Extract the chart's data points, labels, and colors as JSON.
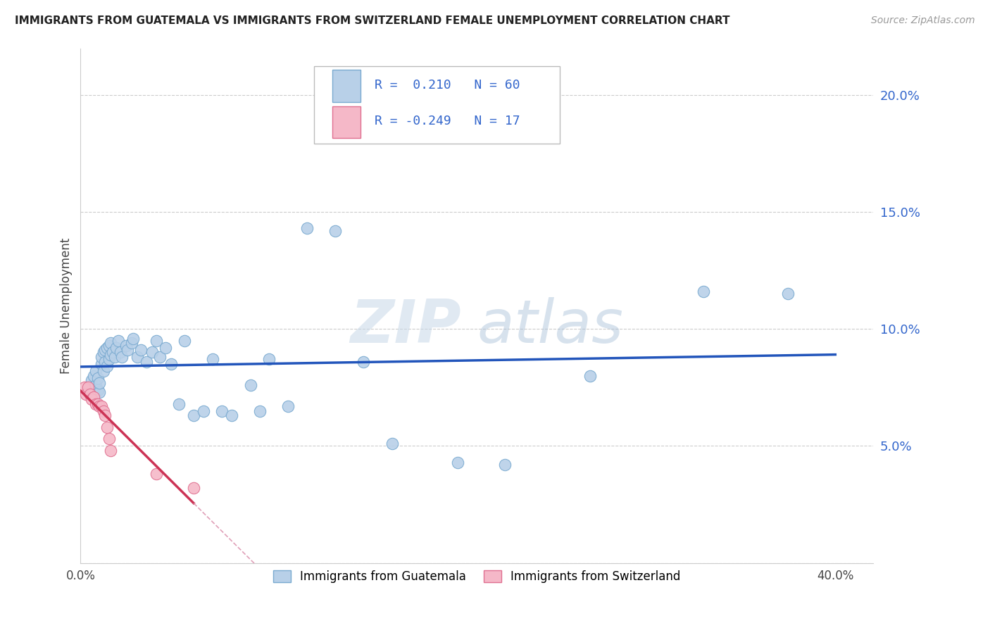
{
  "title": "IMMIGRANTS FROM GUATEMALA VS IMMIGRANTS FROM SWITZERLAND FEMALE UNEMPLOYMENT CORRELATION CHART",
  "source": "Source: ZipAtlas.com",
  "ylabel": "Female Unemployment",
  "ytick_vals": [
    0.0,
    0.05,
    0.1,
    0.15,
    0.2
  ],
  "ytick_labels": [
    "",
    "5.0%",
    "10.0%",
    "15.0%",
    "20.0%"
  ],
  "xtick_vals": [
    0.0,
    0.4
  ],
  "xtick_labels": [
    "0.0%",
    "40.0%"
  ],
  "xlim": [
    0.0,
    0.42
  ],
  "ylim": [
    0.0,
    0.22
  ],
  "r_guatemala": 0.21,
  "n_guatemala": 60,
  "r_switzerland": -0.249,
  "n_switzerland": 17,
  "guatemala_color": "#b8d0e8",
  "guatemala_edge": "#7aaad0",
  "switzerland_color": "#f5b8c8",
  "switzerland_edge": "#e07090",
  "trendline_guatemala_color": "#2255bb",
  "trendline_switzerland_color": "#cc3355",
  "trendline_switzerland_dashed_color": "#e0a0b8",
  "watermark_zip": "ZIP",
  "watermark_atlas": "atlas",
  "guatemala_x": [
    0.005,
    0.006,
    0.007,
    0.007,
    0.008,
    0.008,
    0.009,
    0.009,
    0.01,
    0.01,
    0.011,
    0.011,
    0.012,
    0.012,
    0.013,
    0.013,
    0.014,
    0.014,
    0.015,
    0.015,
    0.016,
    0.016,
    0.017,
    0.018,
    0.019,
    0.02,
    0.021,
    0.022,
    0.024,
    0.025,
    0.027,
    0.028,
    0.03,
    0.032,
    0.035,
    0.038,
    0.04,
    0.042,
    0.045,
    0.048,
    0.052,
    0.055,
    0.06,
    0.065,
    0.07,
    0.075,
    0.08,
    0.09,
    0.095,
    0.1,
    0.11,
    0.12,
    0.135,
    0.15,
    0.165,
    0.2,
    0.225,
    0.27,
    0.33,
    0.375
  ],
  "guatemala_y": [
    0.075,
    0.078,
    0.072,
    0.08,
    0.076,
    0.082,
    0.074,
    0.079,
    0.073,
    0.077,
    0.085,
    0.088,
    0.082,
    0.09,
    0.086,
    0.091,
    0.084,
    0.092,
    0.087,
    0.093,
    0.089,
    0.094,
    0.09,
    0.088,
    0.092,
    0.095,
    0.09,
    0.088,
    0.093,
    0.091,
    0.094,
    0.096,
    0.088,
    0.091,
    0.086,
    0.09,
    0.095,
    0.088,
    0.092,
    0.085,
    0.068,
    0.095,
    0.063,
    0.065,
    0.087,
    0.065,
    0.063,
    0.076,
    0.065,
    0.087,
    0.067,
    0.143,
    0.142,
    0.086,
    0.051,
    0.043,
    0.042,
    0.08,
    0.116,
    0.115
  ],
  "switzerland_x": [
    0.002,
    0.003,
    0.004,
    0.005,
    0.006,
    0.007,
    0.008,
    0.009,
    0.01,
    0.011,
    0.012,
    0.013,
    0.014,
    0.015,
    0.016,
    0.04,
    0.06
  ],
  "switzerland_y": [
    0.075,
    0.072,
    0.075,
    0.072,
    0.07,
    0.071,
    0.068,
    0.068,
    0.067,
    0.067,
    0.065,
    0.063,
    0.058,
    0.053,
    0.048,
    0.038,
    0.032
  ]
}
